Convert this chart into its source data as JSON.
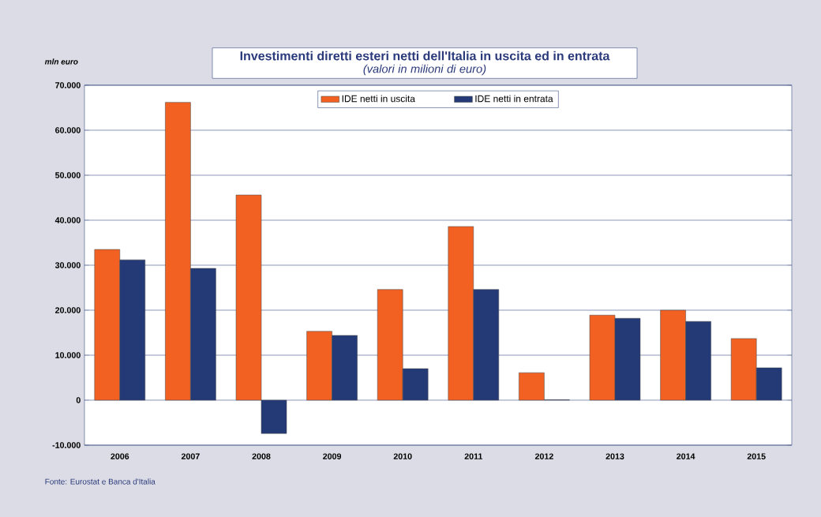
{
  "chart_data": {
    "type": "bar",
    "title": "Investimenti diretti esteri netti dell'Italia in uscita ed in entrata",
    "subtitle": "(valori in milioni di euro)",
    "ylabel": "mln euro",
    "annotations": [
      "Fonte: Eurostat e Banca d'Italia"
    ],
    "categories": [
      "2006",
      "2007",
      "2008",
      "2009",
      "2010",
      "2011",
      "2012",
      "2013",
      "2014",
      "2015"
    ],
    "series": [
      {
        "name": "IDE netti in uscita",
        "color": "#f26122",
        "values": [
          33500,
          66200,
          45600,
          15300,
          24600,
          38600,
          6100,
          18900,
          20000,
          13700
        ]
      },
      {
        "name": "IDE netti in entrata",
        "color": "#233a77",
        "values": [
          31200,
          29300,
          -7400,
          14400,
          7000,
          24600,
          100,
          18200,
          17500,
          7200
        ]
      }
    ],
    "ylim": [
      -10000,
      70000
    ],
    "yticks": [
      {
        "value": -10000,
        "label": "-10.000"
      },
      {
        "value": 0,
        "label": "0"
      },
      {
        "value": 10000,
        "label": "10.000"
      },
      {
        "value": 20000,
        "label": "20.000"
      },
      {
        "value": 30000,
        "label": "30.000"
      },
      {
        "value": 40000,
        "label": "40.000"
      },
      {
        "value": 50000,
        "label": "50.000"
      },
      {
        "value": 60000,
        "label": "60.000"
      },
      {
        "value": 70000,
        "label": "70.000"
      }
    ],
    "grid": "y",
    "legend": "top"
  }
}
